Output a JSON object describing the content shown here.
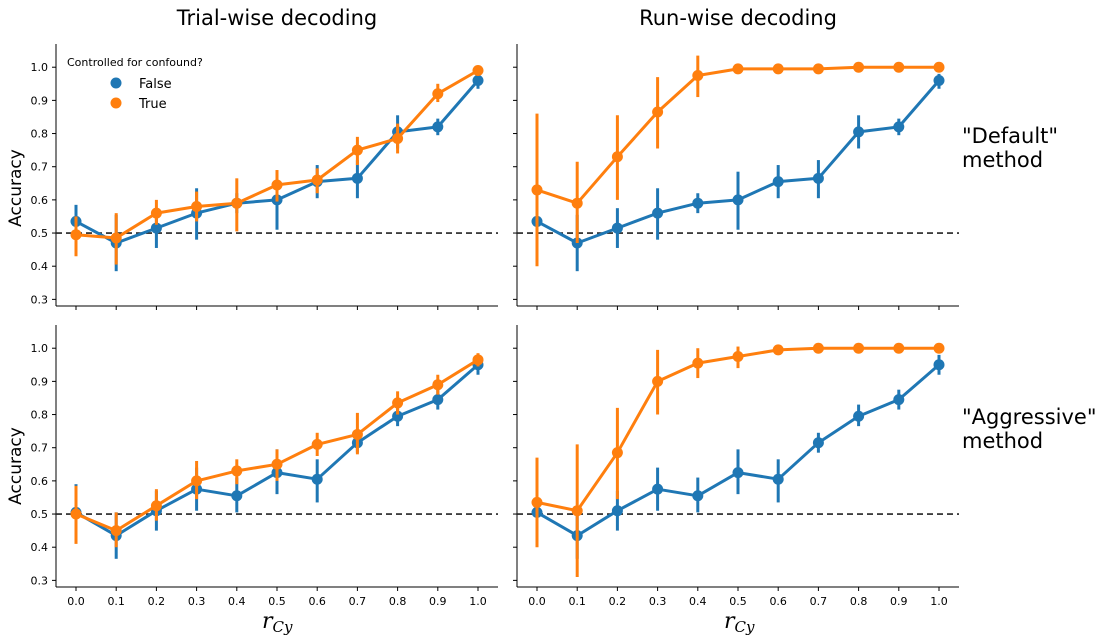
{
  "chart_data": {
    "type": "line",
    "x": [
      "0.0",
      "0.1",
      "0.2",
      "0.3",
      "0.4",
      "0.5",
      "0.6",
      "0.7",
      "0.8",
      "0.9",
      "1.0"
    ],
    "ylabel": "Accuracy",
    "xlabel": {
      "main": "r",
      "sub": "Cy"
    },
    "yticks": [
      "0.3",
      "0.4",
      "0.5",
      "0.6",
      "0.7",
      "0.8",
      "0.9",
      "1.0"
    ],
    "ylim": [
      0.28,
      1.07
    ],
    "chance_level": 0.5,
    "legend": {
      "title": "Controlled for confound?",
      "position": "upper-left",
      "entries": [
        {
          "label": "False",
          "color": "#1f77b4"
        },
        {
          "label": "True",
          "color": "#ff7f0e"
        }
      ]
    },
    "column_titles": [
      "Trial-wise decoding",
      "Run-wise decoding"
    ],
    "row_titles": [
      [
        "\"Default\"",
        "method"
      ],
      [
        "\"Aggressive\"",
        "method"
      ]
    ],
    "panels": [
      {
        "row": 0,
        "col": 0,
        "series": [
          {
            "name": "False",
            "color": "#1f77b4",
            "values": [
              0.535,
              0.47,
              0.515,
              0.56,
              0.59,
              0.6,
              0.655,
              0.665,
              0.805,
              0.82,
              0.96
            ],
            "err": [
              [
                0.49,
                0.585
              ],
              [
                0.385,
                0.555
              ],
              [
                0.455,
                0.575
              ],
              [
                0.48,
                0.635
              ],
              [
                0.56,
                0.62
              ],
              [
                0.51,
                0.685
              ],
              [
                0.605,
                0.705
              ],
              [
                0.605,
                0.72
              ],
              [
                0.755,
                0.855
              ],
              [
                0.795,
                0.845
              ],
              [
                0.935,
                0.98
              ]
            ]
          },
          {
            "name": "True",
            "color": "#ff7f0e",
            "values": [
              0.495,
              0.485,
              0.56,
              0.58,
              0.59,
              0.645,
              0.66,
              0.75,
              0.785,
              0.92,
              0.99
            ],
            "err": [
              [
                0.43,
                0.55
              ],
              [
                0.405,
                0.56
              ],
              [
                0.525,
                0.6
              ],
              [
                0.535,
                0.625
              ],
              [
                0.505,
                0.665
              ],
              [
                0.595,
                0.69
              ],
              [
                0.62,
                0.695
              ],
              [
                0.705,
                0.79
              ],
              [
                0.74,
                0.83
              ],
              [
                0.895,
                0.95
              ],
              [
                0.975,
                1.0
              ]
            ]
          }
        ]
      },
      {
        "row": 0,
        "col": 1,
        "series": [
          {
            "name": "False",
            "color": "#1f77b4",
            "values": [
              0.535,
              0.47,
              0.515,
              0.56,
              0.59,
              0.6,
              0.655,
              0.665,
              0.805,
              0.82,
              0.96
            ],
            "err": [
              [
                0.49,
                0.585
              ],
              [
                0.385,
                0.555
              ],
              [
                0.455,
                0.575
              ],
              [
                0.48,
                0.635
              ],
              [
                0.56,
                0.62
              ],
              [
                0.51,
                0.685
              ],
              [
                0.605,
                0.705
              ],
              [
                0.605,
                0.72
              ],
              [
                0.755,
                0.855
              ],
              [
                0.795,
                0.845
              ],
              [
                0.935,
                0.98
              ]
            ]
          },
          {
            "name": "True",
            "color": "#ff7f0e",
            "values": [
              0.63,
              0.59,
              0.73,
              0.865,
              0.975,
              0.995,
              0.995,
              0.995,
              1.0,
              1.0,
              1.0
            ],
            "err": [
              [
                0.4,
                0.86
              ],
              [
                0.47,
                0.715
              ],
              [
                0.6,
                0.855
              ],
              [
                0.755,
                0.97
              ],
              [
                0.91,
                1.035
              ],
              [
                0.98,
                1.01
              ],
              [
                0.985,
                1.005
              ],
              [
                0.985,
                1.005
              ],
              [
                1.0,
                1.0
              ],
              [
                1.0,
                1.0
              ],
              [
                1.0,
                1.0
              ]
            ]
          }
        ]
      },
      {
        "row": 1,
        "col": 0,
        "series": [
          {
            "name": "False",
            "color": "#1f77b4",
            "values": [
              0.505,
              0.435,
              0.51,
              0.575,
              0.555,
              0.625,
              0.605,
              0.715,
              0.795,
              0.845,
              0.95
            ],
            "err": [
              [
                0.42,
                0.59
              ],
              [
                0.365,
                0.505
              ],
              [
                0.45,
                0.57
              ],
              [
                0.51,
                0.64
              ],
              [
                0.505,
                0.61
              ],
              [
                0.56,
                0.695
              ],
              [
                0.535,
                0.665
              ],
              [
                0.685,
                0.745
              ],
              [
                0.765,
                0.83
              ],
              [
                0.815,
                0.875
              ],
              [
                0.92,
                0.98
              ]
            ]
          },
          {
            "name": "True",
            "color": "#ff7f0e",
            "values": [
              0.5,
              0.45,
              0.525,
              0.6,
              0.63,
              0.65,
              0.71,
              0.74,
              0.835,
              0.89,
              0.965
            ],
            "err": [
              [
                0.41,
                0.585
              ],
              [
                0.4,
                0.505
              ],
              [
                0.48,
                0.575
              ],
              [
                0.545,
                0.66
              ],
              [
                0.59,
                0.665
              ],
              [
                0.6,
                0.695
              ],
              [
                0.675,
                0.745
              ],
              [
                0.68,
                0.805
              ],
              [
                0.8,
                0.87
              ],
              [
                0.86,
                0.92
              ],
              [
                0.945,
                0.985
              ]
            ]
          }
        ]
      },
      {
        "row": 1,
        "col": 1,
        "series": [
          {
            "name": "False",
            "color": "#1f77b4",
            "values": [
              0.505,
              0.435,
              0.51,
              0.575,
              0.555,
              0.625,
              0.605,
              0.715,
              0.795,
              0.845,
              0.95
            ],
            "err": [
              [
                0.42,
                0.59
              ],
              [
                0.365,
                0.505
              ],
              [
                0.45,
                0.57
              ],
              [
                0.51,
                0.64
              ],
              [
                0.505,
                0.61
              ],
              [
                0.56,
                0.695
              ],
              [
                0.535,
                0.665
              ],
              [
                0.685,
                0.745
              ],
              [
                0.765,
                0.83
              ],
              [
                0.815,
                0.875
              ],
              [
                0.92,
                0.98
              ]
            ]
          },
          {
            "name": "True",
            "color": "#ff7f0e",
            "values": [
              0.535,
              0.51,
              0.685,
              0.9,
              0.955,
              0.975,
              0.995,
              1.0,
              1.0,
              1.0,
              1.0
            ],
            "err": [
              [
                0.4,
                0.67
              ],
              [
                0.31,
                0.71
              ],
              [
                0.545,
                0.82
              ],
              [
                0.8,
                0.995
              ],
              [
                0.91,
                1.0
              ],
              [
                0.94,
                1.005
              ],
              [
                0.985,
                1.005
              ],
              [
                1.0,
                1.0
              ],
              [
                1.0,
                1.0
              ],
              [
                1.0,
                1.0
              ],
              [
                1.0,
                1.0
              ]
            ]
          }
        ]
      }
    ]
  }
}
